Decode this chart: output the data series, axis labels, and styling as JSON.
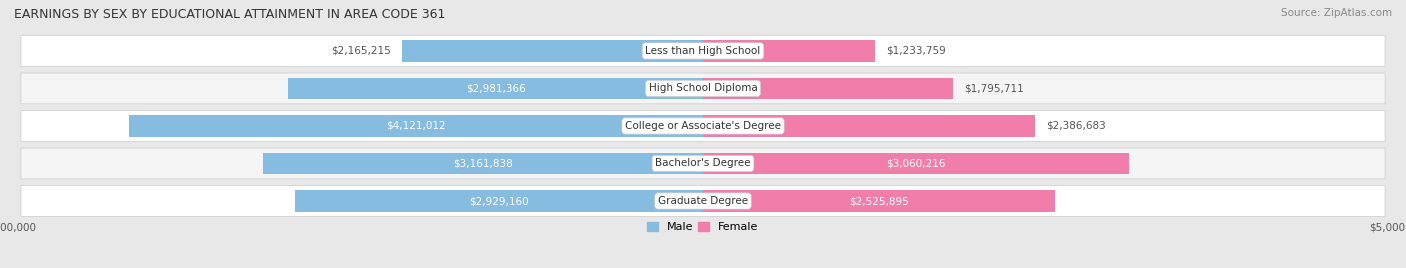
{
  "title": "EARNINGS BY SEX BY EDUCATIONAL ATTAINMENT IN AREA CODE 361",
  "source": "Source: ZipAtlas.com",
  "categories": [
    "Less than High School",
    "High School Diploma",
    "College or Associate's Degree",
    "Bachelor's Degree",
    "Graduate Degree"
  ],
  "male_values": [
    2165215,
    2981366,
    4121012,
    3161838,
    2929160
  ],
  "female_values": [
    1233759,
    1795711,
    2386683,
    3060216,
    2525895
  ],
  "male_color": "#85bce0",
  "female_color": "#f07daa",
  "male_label": "Male",
  "female_label": "Female",
  "xlim": 5000000,
  "bar_height": 0.58,
  "background_color": "#e8e8e8",
  "row_bg_color": "#f5f5f5",
  "row_alt_color": "#ffffff",
  "title_fontsize": 9,
  "source_fontsize": 7.5,
  "value_fontsize": 7.5,
  "axis_label_fontsize": 7.5,
  "legend_fontsize": 8,
  "male_threshold": 2500000,
  "female_threshold": 2500000
}
